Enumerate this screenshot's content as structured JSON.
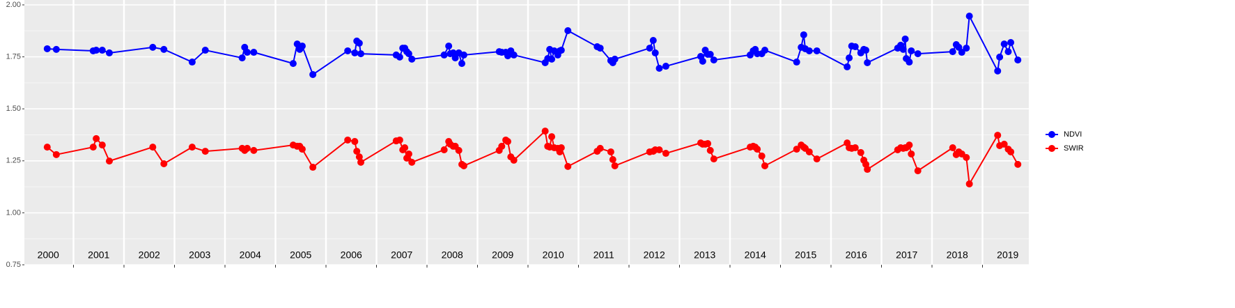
{
  "chart_data": {
    "type": "line",
    "x": [
      2000.48,
      2000.66,
      2001.39,
      2001.45,
      2001.57,
      2001.71,
      2002.57,
      2002.79,
      2003.35,
      2003.61,
      2004.34,
      2004.39,
      2004.44,
      2004.57,
      2005.35,
      2005.43,
      2005.48,
      2005.53,
      2005.74,
      2006.43,
      2006.57,
      2006.61,
      2006.66,
      2006.69,
      2007.39,
      2007.46,
      2007.52,
      2007.56,
      2007.6,
      2007.64,
      2007.7,
      2008.34,
      2008.43,
      2008.46,
      2008.52,
      2008.56,
      2008.63,
      2008.69,
      2008.73,
      2009.43,
      2009.48,
      2009.56,
      2009.6,
      2009.66,
      2009.72,
      2010.34,
      2010.39,
      2010.43,
      2010.47,
      2010.52,
      2010.59,
      2010.63,
      2010.66,
      2010.79,
      2011.37,
      2011.43,
      2011.64,
      2011.68,
      2011.72,
      2012.41,
      2012.48,
      2012.52,
      2012.6,
      2012.73,
      2013.42,
      2013.46,
      2013.51,
      2013.56,
      2013.61,
      2013.68,
      2014.4,
      2014.46,
      2014.5,
      2014.54,
      2014.63,
      2014.69,
      2015.32,
      2015.41,
      2015.46,
      2015.49,
      2015.57,
      2015.72,
      2016.32,
      2016.36,
      2016.41,
      2016.48,
      2016.59,
      2016.65,
      2016.69,
      2016.72,
      2017.32,
      2017.38,
      2017.43,
      2017.47,
      2017.49,
      2017.55,
      2017.59,
      2017.72,
      2018.41,
      2018.48,
      2018.53,
      2018.59,
      2018.68,
      2018.74,
      2019.3,
      2019.34,
      2019.43,
      2019.51,
      2019.56,
      2019.7
    ],
    "series": [
      {
        "name": "NDVI",
        "color": "#0000ff",
        "values": [
          1.789,
          1.786,
          1.779,
          1.782,
          1.782,
          1.769,
          1.796,
          1.786,
          1.725,
          1.782,
          1.745,
          1.796,
          1.772,
          1.772,
          1.718,
          1.812,
          1.786,
          1.802,
          1.665,
          1.779,
          1.769,
          1.826,
          1.816,
          1.765,
          1.759,
          1.749,
          1.792,
          1.792,
          1.775,
          1.765,
          1.739,
          1.759,
          1.802,
          1.765,
          1.769,
          1.745,
          1.769,
          1.718,
          1.759,
          1.775,
          1.772,
          1.772,
          1.755,
          1.779,
          1.759,
          1.722,
          1.742,
          1.786,
          1.739,
          1.779,
          1.759,
          1.779,
          1.782,
          1.876,
          1.799,
          1.792,
          1.732,
          1.722,
          1.739,
          1.792,
          1.829,
          1.769,
          1.695,
          1.705,
          1.752,
          1.729,
          1.782,
          1.762,
          1.762,
          1.735,
          1.759,
          1.779,
          1.786,
          1.765,
          1.765,
          1.782,
          1.725,
          1.796,
          1.856,
          1.789,
          1.779,
          1.779,
          1.702,
          1.745,
          1.802,
          1.799,
          1.769,
          1.786,
          1.782,
          1.722,
          1.792,
          1.806,
          1.786,
          1.836,
          1.742,
          1.725,
          1.779,
          1.765,
          1.775,
          1.809,
          1.796,
          1.772,
          1.792,
          1.946,
          1.682,
          1.749,
          1.812,
          1.775,
          1.819,
          1.735
        ]
      },
      {
        "name": "SWIR",
        "color": "#ff0000",
        "values": [
          1.316,
          1.28,
          1.316,
          1.357,
          1.326,
          1.249,
          1.316,
          1.236,
          1.316,
          1.296,
          1.31,
          1.3,
          1.31,
          1.3,
          1.326,
          1.32,
          1.32,
          1.306,
          1.219,
          1.35,
          1.343,
          1.296,
          1.269,
          1.243,
          1.346,
          1.35,
          1.303,
          1.313,
          1.263,
          1.283,
          1.243,
          1.303,
          1.343,
          1.33,
          1.32,
          1.32,
          1.3,
          1.233,
          1.226,
          1.3,
          1.32,
          1.35,
          1.343,
          1.269,
          1.253,
          1.393,
          1.32,
          1.316,
          1.366,
          1.313,
          1.31,
          1.293,
          1.313,
          1.223,
          1.296,
          1.31,
          1.293,
          1.256,
          1.226,
          1.293,
          1.296,
          1.303,
          1.303,
          1.286,
          1.336,
          1.33,
          1.33,
          1.333,
          1.3,
          1.259,
          1.316,
          1.32,
          1.316,
          1.306,
          1.273,
          1.226,
          1.306,
          1.326,
          1.316,
          1.31,
          1.293,
          1.259,
          1.336,
          1.313,
          1.31,
          1.313,
          1.29,
          1.253,
          1.233,
          1.209,
          1.303,
          1.313,
          1.31,
          1.313,
          1.313,
          1.326,
          1.283,
          1.202,
          1.313,
          1.28,
          1.293,
          1.283,
          1.266,
          1.139,
          1.373,
          1.323,
          1.33,
          1.306,
          1.293,
          1.233
        ]
      }
    ],
    "xlim": [
      2000,
      2019.92
    ],
    "xticks": [
      {
        "value": 2000.5,
        "label": "2000"
      },
      {
        "value": 2001.5,
        "label": "2001"
      },
      {
        "value": 2002.5,
        "label": "2002"
      },
      {
        "value": 2003.5,
        "label": "2003"
      },
      {
        "value": 2004.5,
        "label": "2004"
      },
      {
        "value": 2005.5,
        "label": "2005"
      },
      {
        "value": 2006.5,
        "label": "2006"
      },
      {
        "value": 2007.5,
        "label": "2007"
      },
      {
        "value": 2008.5,
        "label": "2008"
      },
      {
        "value": 2009.5,
        "label": "2009"
      },
      {
        "value": 2010.5,
        "label": "2010"
      },
      {
        "value": 2011.5,
        "label": "2011"
      },
      {
        "value": 2012.5,
        "label": "2012"
      },
      {
        "value": 2013.5,
        "label": "2013"
      },
      {
        "value": 2014.5,
        "label": "2014"
      },
      {
        "value": 2015.5,
        "label": "2015"
      },
      {
        "value": 2016.5,
        "label": "2016"
      },
      {
        "value": 2017.5,
        "label": "2017"
      },
      {
        "value": 2018.5,
        "label": "2018"
      },
      {
        "value": 2019.5,
        "label": "2019"
      }
    ],
    "year_boundaries": [
      2001,
      2002,
      2003,
      2004,
      2005,
      2006,
      2007,
      2008,
      2009,
      2010,
      2011,
      2012,
      2013,
      2014,
      2015,
      2016,
      2017,
      2018,
      2019
    ],
    "ylim": [
      0.75,
      2.0
    ],
    "yticks": [
      0.75,
      {
        "value": 1.0,
        "label": "1.00"
      },
      1.25,
      {
        "value": 1.5,
        "label": "1.50"
      },
      1.75,
      {
        "value": 2.0,
        "label": "2.00"
      }
    ],
    "grid": true,
    "legend": "right"
  }
}
